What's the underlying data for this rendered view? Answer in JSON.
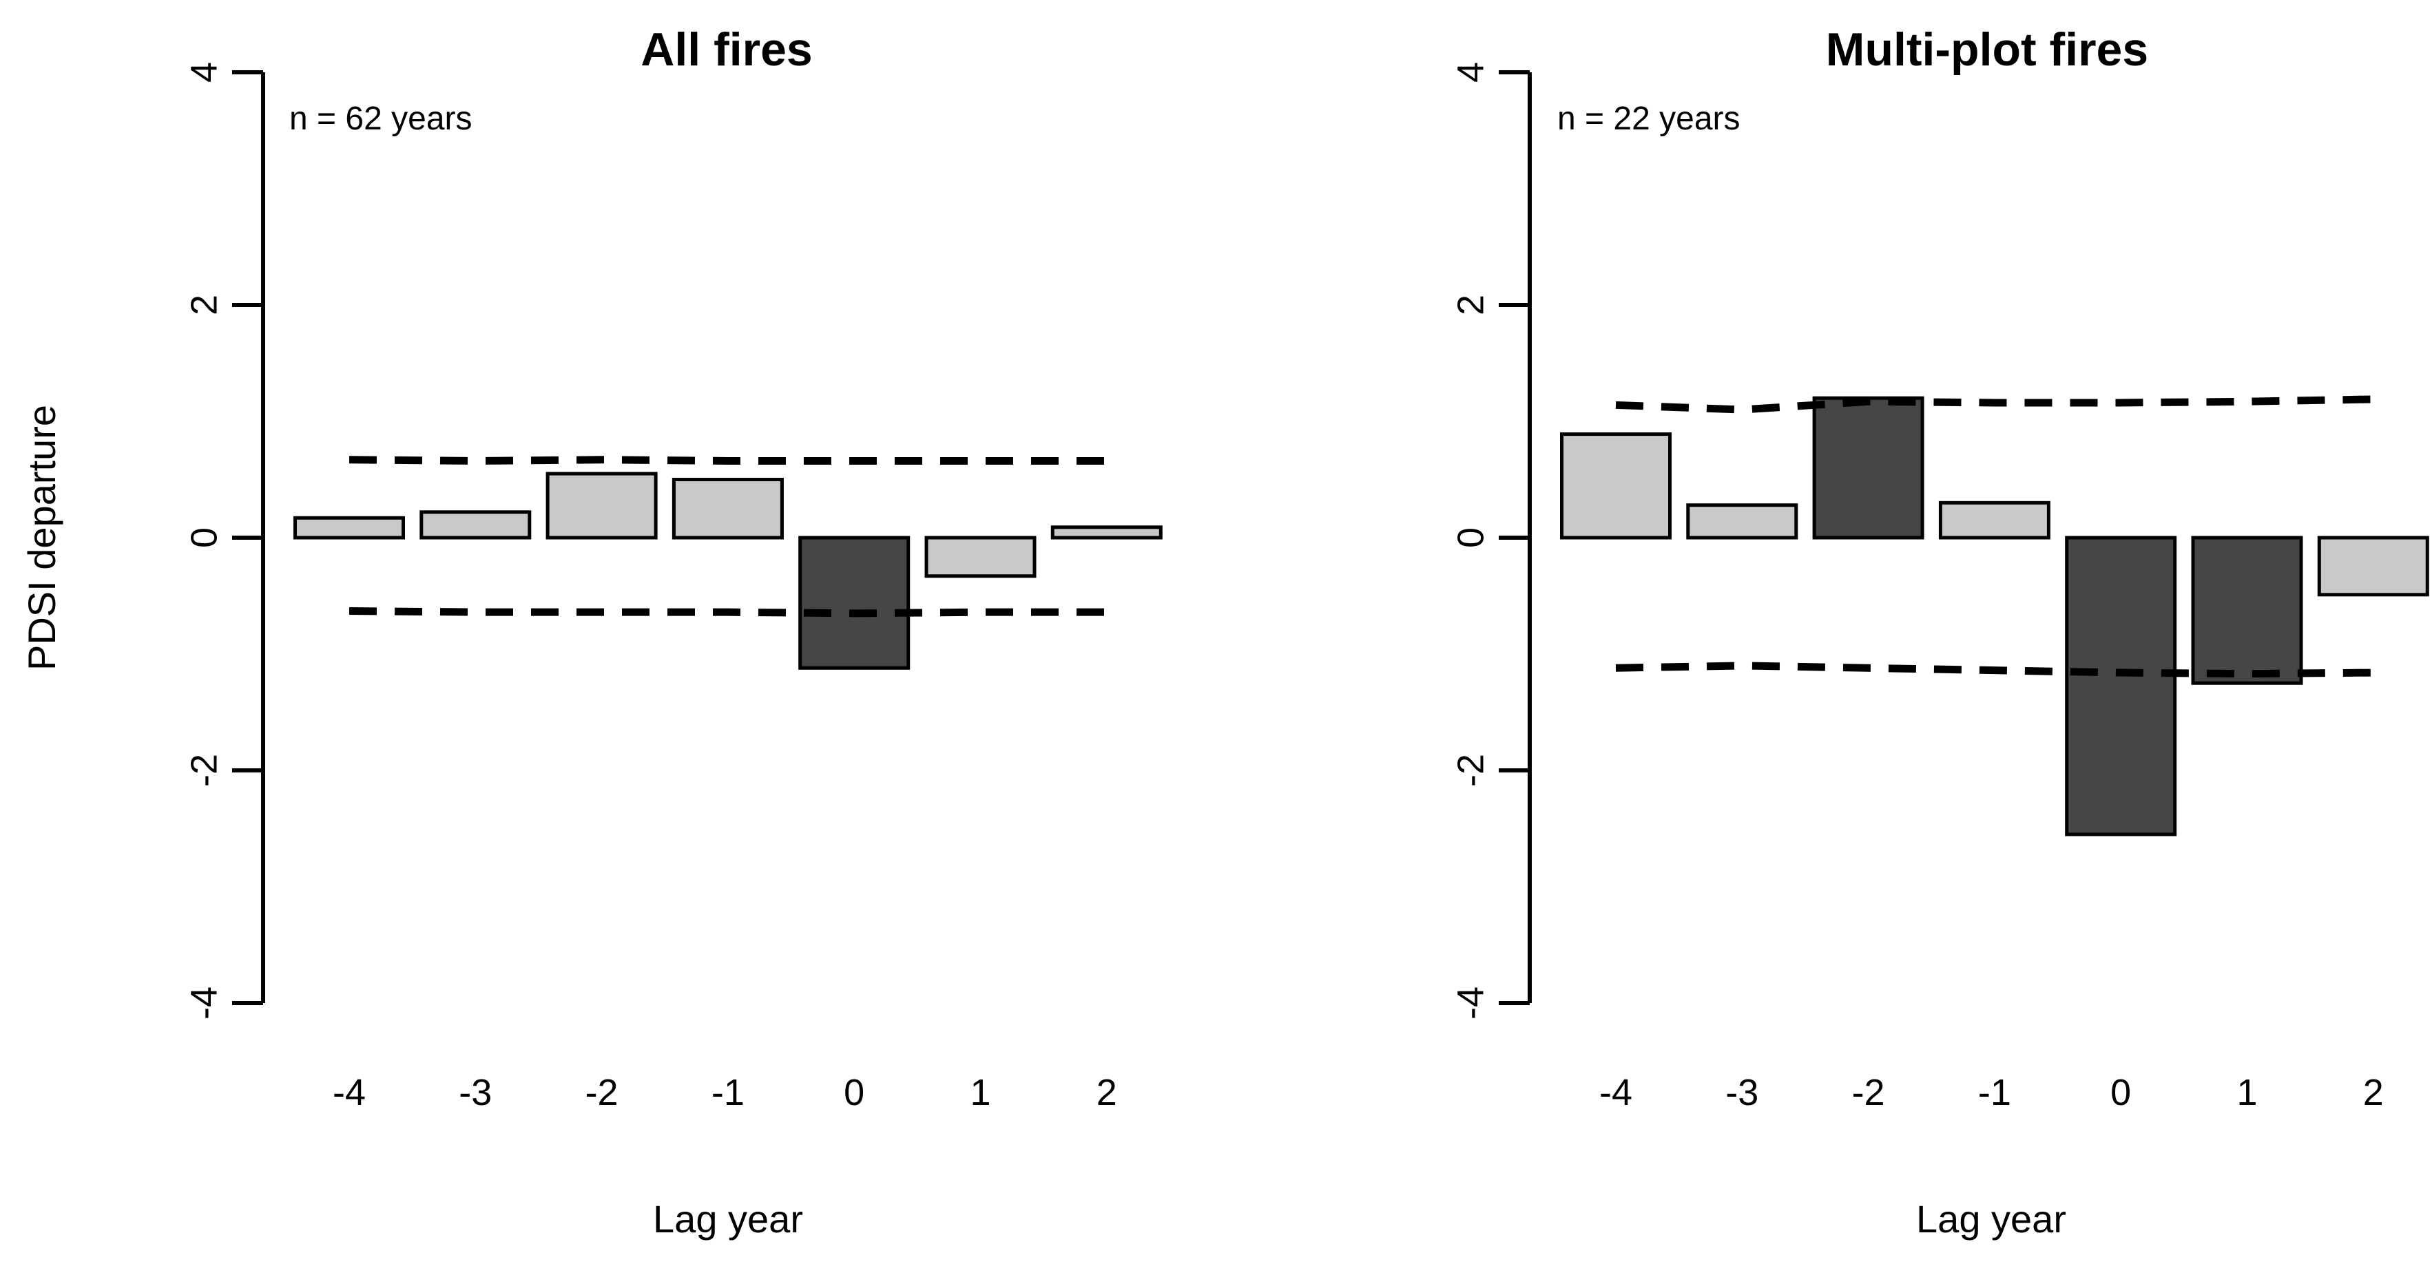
{
  "chart_data": {
    "type": "bar",
    "subtype": "superposed-epoch-analysis",
    "categories": [
      "-4",
      "-3",
      "-2",
      "-1",
      "0",
      "1",
      "2"
    ],
    "xlabel": "Lag year",
    "ylabel": "PDSI departure",
    "ylim": [
      -4,
      4
    ],
    "yticks": [
      "-4",
      "-2",
      "0",
      "2",
      "4"
    ],
    "ytick_values": [
      -4,
      -2,
      0,
      2,
      4
    ],
    "grid": false,
    "legend": "none",
    "colors": {
      "nonsignificant_bar": "#c9c9c9",
      "significant_bar": "#464646",
      "bar_border": "#000000",
      "ci_line": "#000000",
      "background": "#ffffff"
    },
    "panels": [
      {
        "title": "All fires",
        "n_label": "n = 62 years",
        "bars": [
          {
            "lag": -4,
            "value": 0.17,
            "significant": false
          },
          {
            "lag": -3,
            "value": 0.22,
            "significant": false
          },
          {
            "lag": -2,
            "value": 0.55,
            "significant": false
          },
          {
            "lag": -1,
            "value": 0.5,
            "significant": false
          },
          {
            "lag": 0,
            "value": -1.12,
            "significant": true
          },
          {
            "lag": 1,
            "value": -0.33,
            "significant": false
          },
          {
            "lag": 2,
            "value": 0.09,
            "significant": false
          }
        ],
        "ci_upper": [
          0.67,
          0.66,
          0.67,
          0.66,
          0.66,
          0.66,
          0.66
        ],
        "ci_lower": [
          -0.63,
          -0.64,
          -0.64,
          -0.64,
          -0.65,
          -0.64,
          -0.64
        ]
      },
      {
        "title": "Multi-plot fires",
        "n_label": "n = 22 years",
        "bars": [
          {
            "lag": -4,
            "value": 0.89,
            "significant": false
          },
          {
            "lag": -3,
            "value": 0.28,
            "significant": false
          },
          {
            "lag": -2,
            "value": 1.2,
            "significant": true
          },
          {
            "lag": -1,
            "value": 0.3,
            "significant": false
          },
          {
            "lag": 0,
            "value": -2.55,
            "significant": true
          },
          {
            "lag": 1,
            "value": -1.25,
            "significant": true
          },
          {
            "lag": 2,
            "value": -0.49,
            "significant": false
          }
        ],
        "ci_upper": [
          1.14,
          1.1,
          1.17,
          1.16,
          1.16,
          1.17,
          1.19
        ],
        "ci_lower": [
          -1.12,
          -1.1,
          -1.12,
          -1.14,
          -1.16,
          -1.17,
          -1.16
        ]
      }
    ]
  }
}
